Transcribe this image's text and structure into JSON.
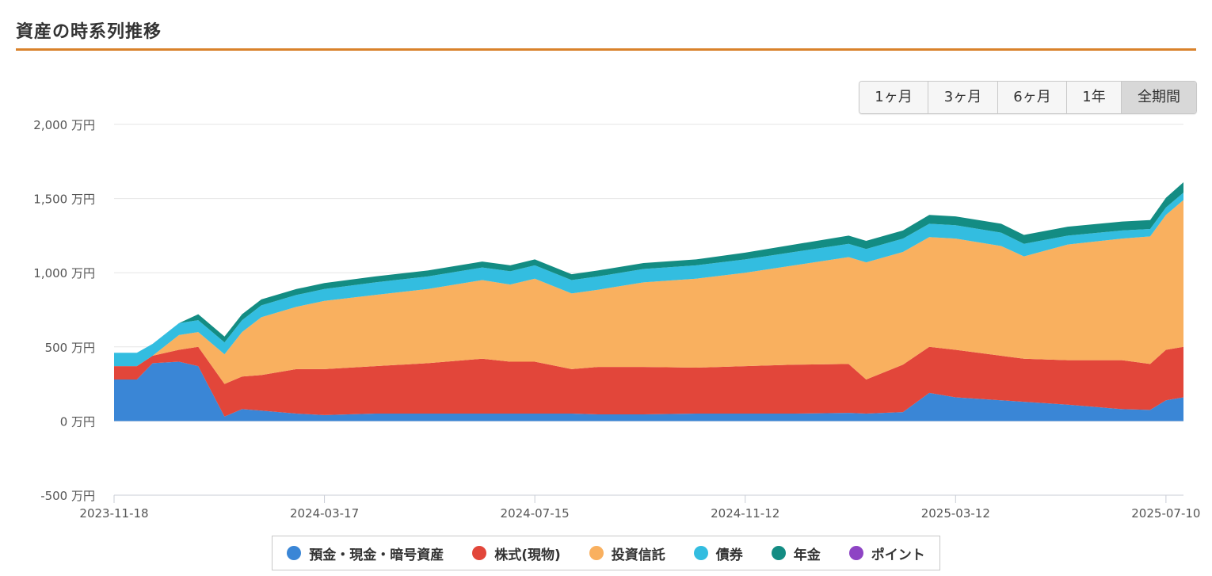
{
  "header": {
    "title": "資産の時系列推移"
  },
  "range_buttons": [
    {
      "label": "1ヶ月",
      "active": false
    },
    {
      "label": "3ヶ月",
      "active": false
    },
    {
      "label": "6ヶ月",
      "active": false
    },
    {
      "label": "1年",
      "active": false
    },
    {
      "label": "全期間",
      "active": true
    }
  ],
  "colors": {
    "cash": "#3a86d6",
    "stocks": "#e2463a",
    "funds": "#f9b05f",
    "bonds": "#33bde0",
    "pension": "#138c83",
    "points": "#8e44c4"
  },
  "chart_data": {
    "type": "area",
    "stacked": true,
    "yunit": "万円",
    "ylim": [
      -500,
      2000
    ],
    "yticks": [
      -500,
      0,
      500,
      1000,
      1500,
      2000
    ],
    "ytick_labels": [
      "-500 万円",
      "0 万円",
      "500 万円",
      "1,000 万円",
      "1,500 万円",
      "2,000 万円"
    ],
    "xtick_labels": [
      "2023-11-18",
      "2024-03-17",
      "2024-07-15",
      "2024-11-12",
      "2025-03-12",
      "2025-07-10"
    ],
    "xrange": [
      "2023-11-18",
      "2025-07-20"
    ],
    "grid": true,
    "legend_position": "bottom",
    "x": [
      "2023-11-18",
      "2023-12-01",
      "2023-12-10",
      "2023-12-25",
      "2024-01-05",
      "2024-01-20",
      "2024-01-30",
      "2024-02-10",
      "2024-03-01",
      "2024-03-17",
      "2024-04-15",
      "2024-05-15",
      "2024-06-15",
      "2024-07-01",
      "2024-07-15",
      "2024-08-05",
      "2024-08-20",
      "2024-09-15",
      "2024-10-15",
      "2024-11-12",
      "2024-12-10",
      "2025-01-10",
      "2025-01-20",
      "2025-02-10",
      "2025-02-25",
      "2025-03-12",
      "2025-04-07",
      "2025-04-20",
      "2025-05-15",
      "2025-06-15",
      "2025-07-01",
      "2025-07-10",
      "2025-07-20"
    ],
    "series": [
      {
        "name": "預金・現金・暗号資産",
        "color_key": "cash",
        "values": [
          280,
          280,
          390,
          400,
          370,
          30,
          80,
          70,
          50,
          40,
          50,
          50,
          50,
          50,
          50,
          50,
          45,
          45,
          50,
          50,
          50,
          55,
          50,
          60,
          190,
          160,
          140,
          130,
          110,
          80,
          75,
          140,
          160
        ]
      },
      {
        "name": "株式(現物)",
        "color_key": "stocks",
        "values": [
          90,
          90,
          50,
          80,
          130,
          220,
          220,
          240,
          300,
          310,
          320,
          340,
          370,
          350,
          350,
          300,
          320,
          320,
          310,
          320,
          330,
          330,
          230,
          320,
          310,
          320,
          300,
          290,
          300,
          330,
          310,
          340,
          340
        ]
      },
      {
        "name": "投資信託",
        "color_key": "funds",
        "values": [
          0,
          0,
          0,
          100,
          100,
          200,
          300,
          390,
          420,
          460,
          480,
          500,
          530,
          520,
          560,
          510,
          520,
          570,
          600,
          630,
          670,
          720,
          790,
          760,
          740,
          750,
          740,
          690,
          780,
          820,
          860,
          910,
          990
        ]
      },
      {
        "name": "債券",
        "color_key": "bonds",
        "values": [
          90,
          90,
          80,
          80,
          80,
          80,
          80,
          80,
          80,
          80,
          85,
          85,
          85,
          90,
          90,
          90,
          90,
          90,
          90,
          90,
          90,
          90,
          90,
          90,
          90,
          90,
          90,
          85,
          60,
          55,
          50,
          50,
          50
        ]
      },
      {
        "name": "年金",
        "color_key": "pension",
        "values": [
          0,
          0,
          0,
          0,
          40,
          40,
          40,
          40,
          40,
          40,
          40,
          40,
          40,
          40,
          40,
          40,
          40,
          40,
          40,
          45,
          50,
          55,
          55,
          55,
          60,
          60,
          60,
          60,
          60,
          60,
          60,
          65,
          70
        ]
      },
      {
        "name": "ポイント",
        "color_key": "points",
        "values": [
          0,
          0,
          0,
          0,
          0,
          0,
          0,
          0,
          0,
          0,
          0,
          0,
          0,
          0,
          0,
          0,
          0,
          0,
          0,
          0,
          0,
          0,
          0,
          0,
          0,
          0,
          0,
          0,
          0,
          0,
          0,
          0,
          0
        ]
      }
    ]
  }
}
